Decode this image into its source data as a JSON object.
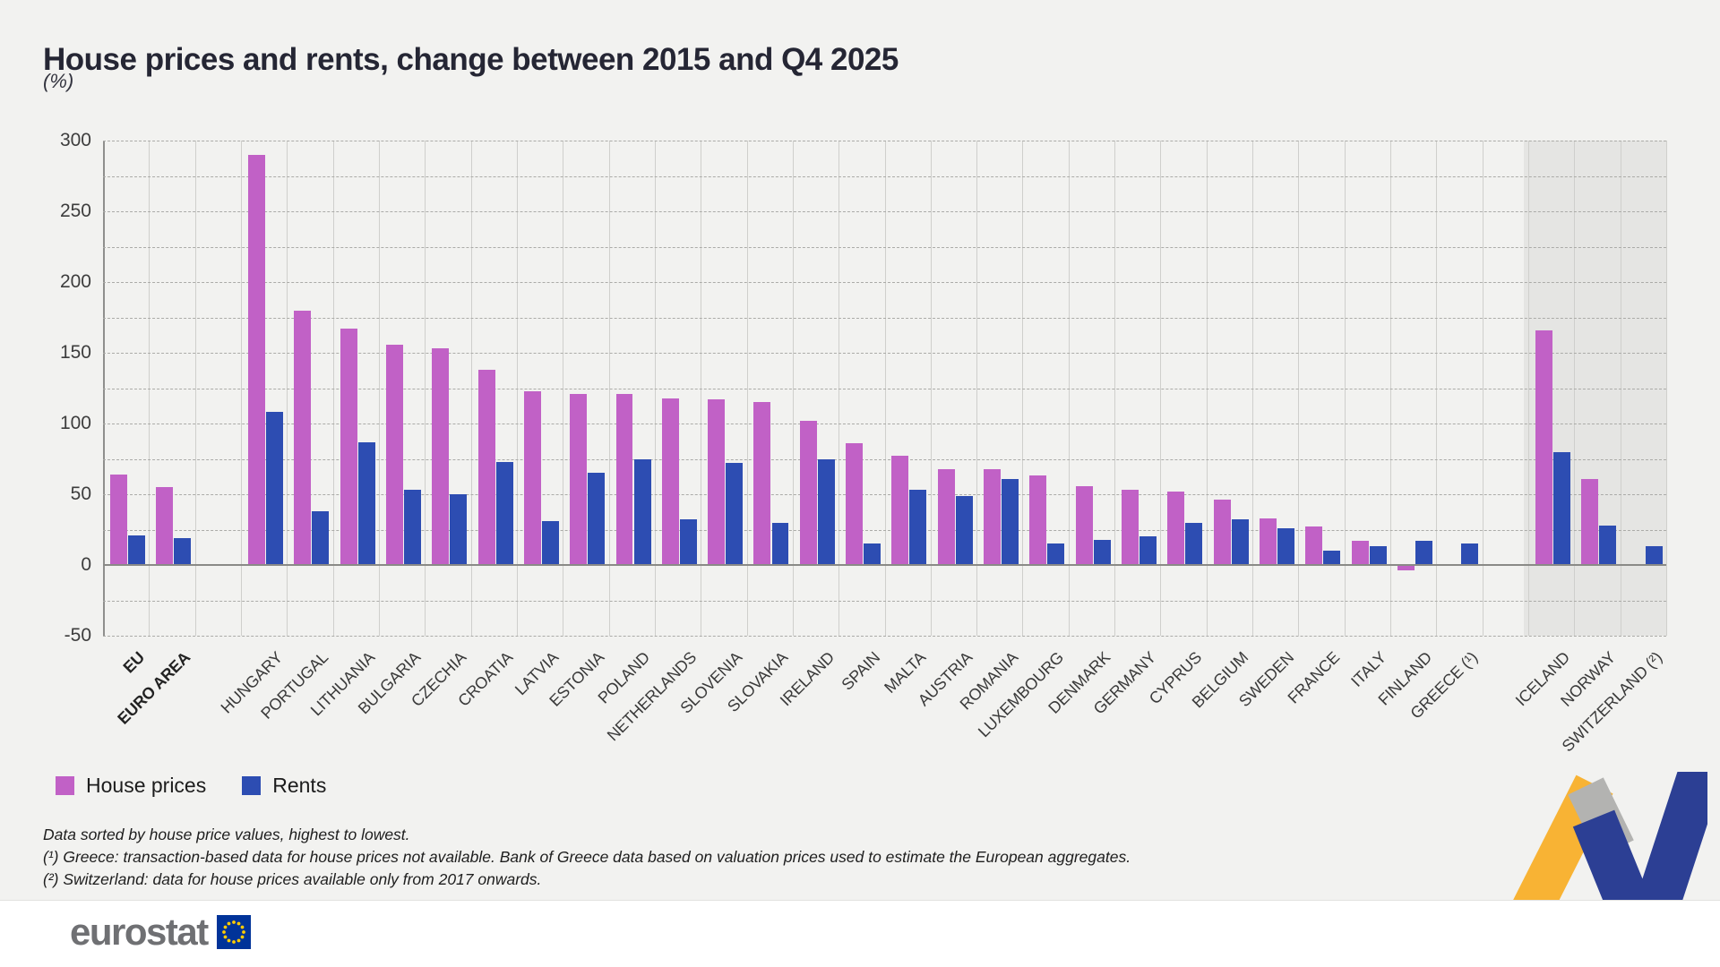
{
  "page": {
    "title": "House prices and rents, change between 2015 and Q4 2025",
    "unit": "(%)"
  },
  "legend": {
    "house_prices": "House prices",
    "rents": "Rents"
  },
  "footnotes": [
    "Data sorted by house price values, highest to lowest.",
    "(¹) Greece: transaction-based data for house prices not available. Bank of Greece data based on valuation prices used to estimate the European aggregates.",
    "(²) Switzerland: data for house prices available only from 2017 onwards."
  ],
  "footer": {
    "logo_text": "eurostat"
  },
  "colors": {
    "house_prices": "#c161c6",
    "rents": "#2d4db2",
    "efta_band": "#e5e5e3",
    "background": "#f2f2f0",
    "footer_background": "#ffffff",
    "eu_flag_blue": "#003399",
    "eu_star_yellow": "#ffcc00",
    "ribbon_yellow": "#f8b334",
    "ribbon_gray": "#b3b3b1",
    "ribbon_blue": "#2c3f94"
  },
  "chart_data": {
    "type": "bar",
    "title": "House prices and rents, change between 2015 and Q4 2025",
    "unit": "(%)",
    "ylim": [
      -50,
      300
    ],
    "ytick_interval": 50,
    "gridline_interval": 25,
    "grid": true,
    "legend_position": "bottom-left",
    "categories": [
      "EU",
      "EURO AREA",
      "HUNGARY",
      "PORTUGAL",
      "LITHUANIA",
      "BULGARIA",
      "CZECHIA",
      "CROATIA",
      "LATVIA",
      "ESTONIA",
      "POLAND",
      "NETHERLANDS",
      "SLOVENIA",
      "SLOVAKIA",
      "IRELAND",
      "SPAIN",
      "MALTA",
      "AUSTRIA",
      "ROMANIA",
      "LUXEMBOURG",
      "DENMARK",
      "GERMANY",
      "CYPRUS",
      "BELGIUM",
      "SWEDEN",
      "FRANCE",
      "ITALY",
      "FINLAND",
      "GREECE (¹)",
      "ICELAND",
      "NORWAY",
      "SWITZERLAND (²)"
    ],
    "series": [
      {
        "name": "House prices",
        "color": "#c161c6",
        "values": [
          64,
          55,
          290,
          180,
          167,
          156,
          153,
          138,
          123,
          121,
          121,
          118,
          117,
          115,
          102,
          86,
          77,
          68,
          68,
          63,
          56,
          53,
          52,
          46,
          33,
          27,
          17,
          -4,
          null,
          166,
          61,
          null
        ]
      },
      {
        "name": "Rents",
        "color": "#2d4db2",
        "values": [
          21,
          19,
          108,
          38,
          87,
          53,
          50,
          73,
          31,
          65,
          75,
          32,
          72,
          30,
          75,
          15,
          53,
          49,
          61,
          15,
          18,
          20,
          30,
          32,
          26,
          10,
          13,
          17,
          15,
          80,
          28,
          13
        ]
      }
    ],
    "gaps_after": [
      "EURO AREA",
      "GREECE (¹)"
    ],
    "bold_categories": [
      "EU",
      "EURO AREA"
    ],
    "shaded_categories": [
      "ICELAND",
      "NORWAY",
      "SWITZERLAND (²)"
    ]
  }
}
